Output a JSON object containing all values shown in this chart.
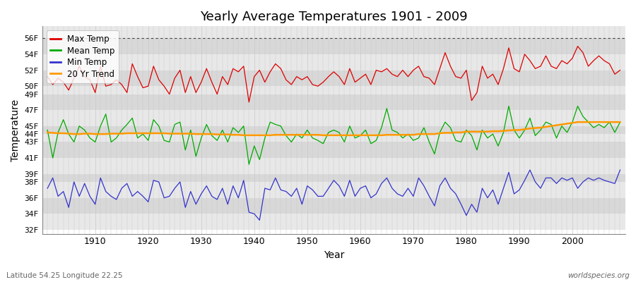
{
  "years": [
    1901,
    1902,
    1903,
    1904,
    1905,
    1906,
    1907,
    1908,
    1909,
    1910,
    1911,
    1912,
    1913,
    1914,
    1915,
    1916,
    1917,
    1918,
    1919,
    1920,
    1921,
    1922,
    1923,
    1924,
    1925,
    1926,
    1927,
    1928,
    1929,
    1930,
    1931,
    1932,
    1933,
    1934,
    1935,
    1936,
    1937,
    1938,
    1939,
    1940,
    1941,
    1942,
    1943,
    1944,
    1945,
    1946,
    1947,
    1948,
    1949,
    1950,
    1951,
    1952,
    1953,
    1954,
    1955,
    1956,
    1957,
    1958,
    1959,
    1960,
    1961,
    1962,
    1963,
    1964,
    1965,
    1966,
    1967,
    1968,
    1969,
    1970,
    1971,
    1972,
    1973,
    1974,
    1975,
    1976,
    1977,
    1978,
    1979,
    1980,
    1981,
    1982,
    1983,
    1984,
    1985,
    1986,
    1987,
    1988,
    1989,
    1990,
    1991,
    1992,
    1993,
    1994,
    1995,
    1996,
    1997,
    1998,
    1999,
    2000,
    2001,
    2002,
    2003,
    2004,
    2005,
    2006,
    2007,
    2008,
    2009
  ],
  "max_temp": [
    51.2,
    50.2,
    51.0,
    50.5,
    49.5,
    51.0,
    52.5,
    51.2,
    50.8,
    49.2,
    52.5,
    50.0,
    50.2,
    50.8,
    50.2,
    49.2,
    52.8,
    51.2,
    49.8,
    50.0,
    52.5,
    50.8,
    50.0,
    49.0,
    51.0,
    52.0,
    49.2,
    51.2,
    49.2,
    50.5,
    52.2,
    50.5,
    49.0,
    51.2,
    50.2,
    52.2,
    51.8,
    52.5,
    48.0,
    51.2,
    52.0,
    50.5,
    51.8,
    52.8,
    52.2,
    50.8,
    50.2,
    51.2,
    50.8,
    51.2,
    50.2,
    50.0,
    50.5,
    51.2,
    51.8,
    51.2,
    50.2,
    52.2,
    50.5,
    51.0,
    51.5,
    50.2,
    52.0,
    51.8,
    52.2,
    51.5,
    51.2,
    52.0,
    51.2,
    52.0,
    52.5,
    51.2,
    51.0,
    50.2,
    52.2,
    54.2,
    52.5,
    51.2,
    51.0,
    52.0,
    48.2,
    49.2,
    52.5,
    51.0,
    51.5,
    50.2,
    52.2,
    54.8,
    52.2,
    51.8,
    54.0,
    53.2,
    52.2,
    52.5,
    53.8,
    52.5,
    52.2,
    53.2,
    52.8,
    53.5,
    55.0,
    54.2,
    52.5,
    53.2,
    53.8,
    53.2,
    52.8,
    51.5,
    52.0
  ],
  "mean_temp": [
    44.5,
    41.0,
    44.2,
    45.8,
    44.0,
    43.0,
    45.0,
    44.5,
    43.5,
    43.0,
    45.0,
    46.5,
    43.0,
    43.5,
    44.5,
    45.2,
    46.0,
    43.5,
    44.0,
    43.2,
    45.8,
    45.0,
    43.2,
    43.0,
    45.2,
    45.5,
    42.0,
    44.5,
    41.2,
    43.5,
    45.2,
    43.8,
    43.2,
    44.5,
    43.0,
    44.8,
    44.2,
    45.0,
    40.2,
    42.5,
    40.8,
    43.5,
    45.5,
    45.2,
    45.0,
    43.8,
    43.0,
    44.0,
    43.5,
    44.5,
    43.5,
    43.2,
    42.8,
    44.2,
    44.5,
    44.2,
    43.0,
    45.0,
    43.5,
    43.8,
    44.5,
    42.8,
    43.2,
    44.8,
    47.2,
    44.5,
    44.2,
    43.5,
    44.0,
    43.2,
    43.5,
    44.8,
    43.0,
    41.5,
    44.2,
    45.5,
    44.8,
    43.2,
    43.0,
    44.5,
    43.8,
    42.0,
    44.5,
    43.5,
    44.0,
    42.5,
    44.2,
    47.5,
    44.5,
    43.5,
    44.5,
    46.0,
    43.8,
    44.5,
    45.5,
    45.2,
    43.5,
    45.0,
    44.2,
    45.5,
    47.5,
    46.2,
    45.5,
    44.8,
    45.2,
    44.8,
    45.5,
    44.2,
    45.5
  ],
  "min_temp": [
    37.2,
    38.5,
    36.2,
    36.8,
    34.8,
    38.0,
    36.2,
    37.8,
    36.2,
    35.2,
    38.5,
    36.8,
    36.2,
    35.8,
    37.2,
    37.8,
    36.2,
    36.8,
    36.2,
    35.5,
    38.2,
    38.0,
    36.0,
    36.2,
    37.2,
    38.0,
    34.8,
    36.8,
    35.2,
    36.5,
    37.5,
    36.2,
    35.8,
    37.2,
    35.2,
    37.5,
    36.0,
    38.2,
    34.2,
    34.0,
    33.2,
    37.2,
    37.0,
    38.5,
    37.0,
    36.8,
    36.2,
    37.2,
    35.2,
    37.5,
    37.0,
    36.2,
    36.2,
    37.2,
    38.2,
    37.5,
    36.2,
    38.2,
    36.2,
    37.2,
    37.5,
    36.0,
    36.5,
    37.8,
    38.5,
    37.2,
    36.5,
    36.2,
    37.2,
    36.2,
    38.5,
    37.5,
    36.2,
    35.0,
    37.5,
    38.5,
    37.2,
    36.5,
    35.2,
    33.8,
    35.2,
    34.2,
    37.2,
    36.0,
    37.0,
    35.2,
    37.2,
    39.2,
    36.5,
    37.0,
    38.2,
    39.5,
    38.0,
    37.2,
    38.5,
    38.5,
    37.8,
    38.5,
    38.2,
    38.5,
    37.2,
    38.0,
    38.5,
    38.2,
    38.5,
    38.2,
    38.0,
    37.8,
    39.5
  ],
  "trend": [
    44.2,
    44.15,
    44.1,
    44.1,
    44.05,
    44.0,
    44.0,
    44.05,
    44.05,
    44.0,
    44.0,
    44.0,
    44.05,
    44.05,
    44.05,
    44.1,
    44.1,
    44.1,
    44.1,
    44.1,
    44.1,
    44.1,
    44.1,
    44.05,
    44.05,
    44.05,
    44.05,
    44.05,
    44.0,
    44.0,
    44.0,
    44.0,
    43.95,
    43.95,
    43.95,
    43.9,
    43.9,
    43.85,
    43.85,
    43.85,
    43.85,
    43.85,
    43.85,
    43.9,
    43.9,
    43.9,
    43.9,
    43.9,
    43.9,
    43.9,
    43.9,
    43.9,
    43.85,
    43.85,
    43.85,
    43.85,
    43.85,
    43.85,
    43.85,
    43.85,
    43.85,
    43.85,
    43.85,
    43.85,
    43.9,
    43.9,
    43.9,
    43.9,
    43.9,
    43.9,
    44.0,
    44.0,
    44.0,
    44.0,
    44.1,
    44.15,
    44.15,
    44.2,
    44.2,
    44.3,
    44.3,
    44.3,
    44.3,
    44.3,
    44.35,
    44.35,
    44.4,
    44.45,
    44.5,
    44.5,
    44.6,
    44.7,
    44.75,
    44.8,
    44.9,
    45.0,
    45.1,
    45.2,
    45.3,
    45.4,
    45.5,
    45.5,
    45.5,
    45.5,
    45.5,
    45.5,
    45.5,
    45.5,
    45.5
  ],
  "title": "Yearly Average Temperatures 1901 - 2009",
  "xlabel": "Year",
  "ylabel": "Temperature",
  "yticks": [
    32,
    34,
    36,
    38,
    39,
    41,
    43,
    44,
    45,
    47,
    49,
    50,
    52,
    54,
    56
  ],
  "ytick_labels": [
    "32F",
    "34F",
    "36F",
    "38F",
    "39F",
    "41F",
    "43F",
    "44F",
    "45F",
    "47F",
    "49F",
    "50F",
    "52F",
    "54F",
    "56F"
  ],
  "band_edges": [
    32,
    34,
    36,
    38,
    39,
    41,
    43,
    44,
    45,
    47,
    49,
    50,
    52,
    54,
    56,
    58
  ],
  "ylim": [
    31.5,
    57.5
  ],
  "xlim": [
    1900,
    2010
  ],
  "fig_bg_color": "#ffffff",
  "plot_bg_color": "#ffffff",
  "band_color_light": "#e8e8e8",
  "band_color_dark": "#d8d8d8",
  "grid_color": "#c8c8c8",
  "max_color": "#dd0000",
  "mean_color": "#00aa00",
  "min_color": "#3333cc",
  "trend_color": "#ff9900",
  "caption_left": "Latitude 54.25 Longitude 22.25",
  "caption_right": "worldspecies.org"
}
